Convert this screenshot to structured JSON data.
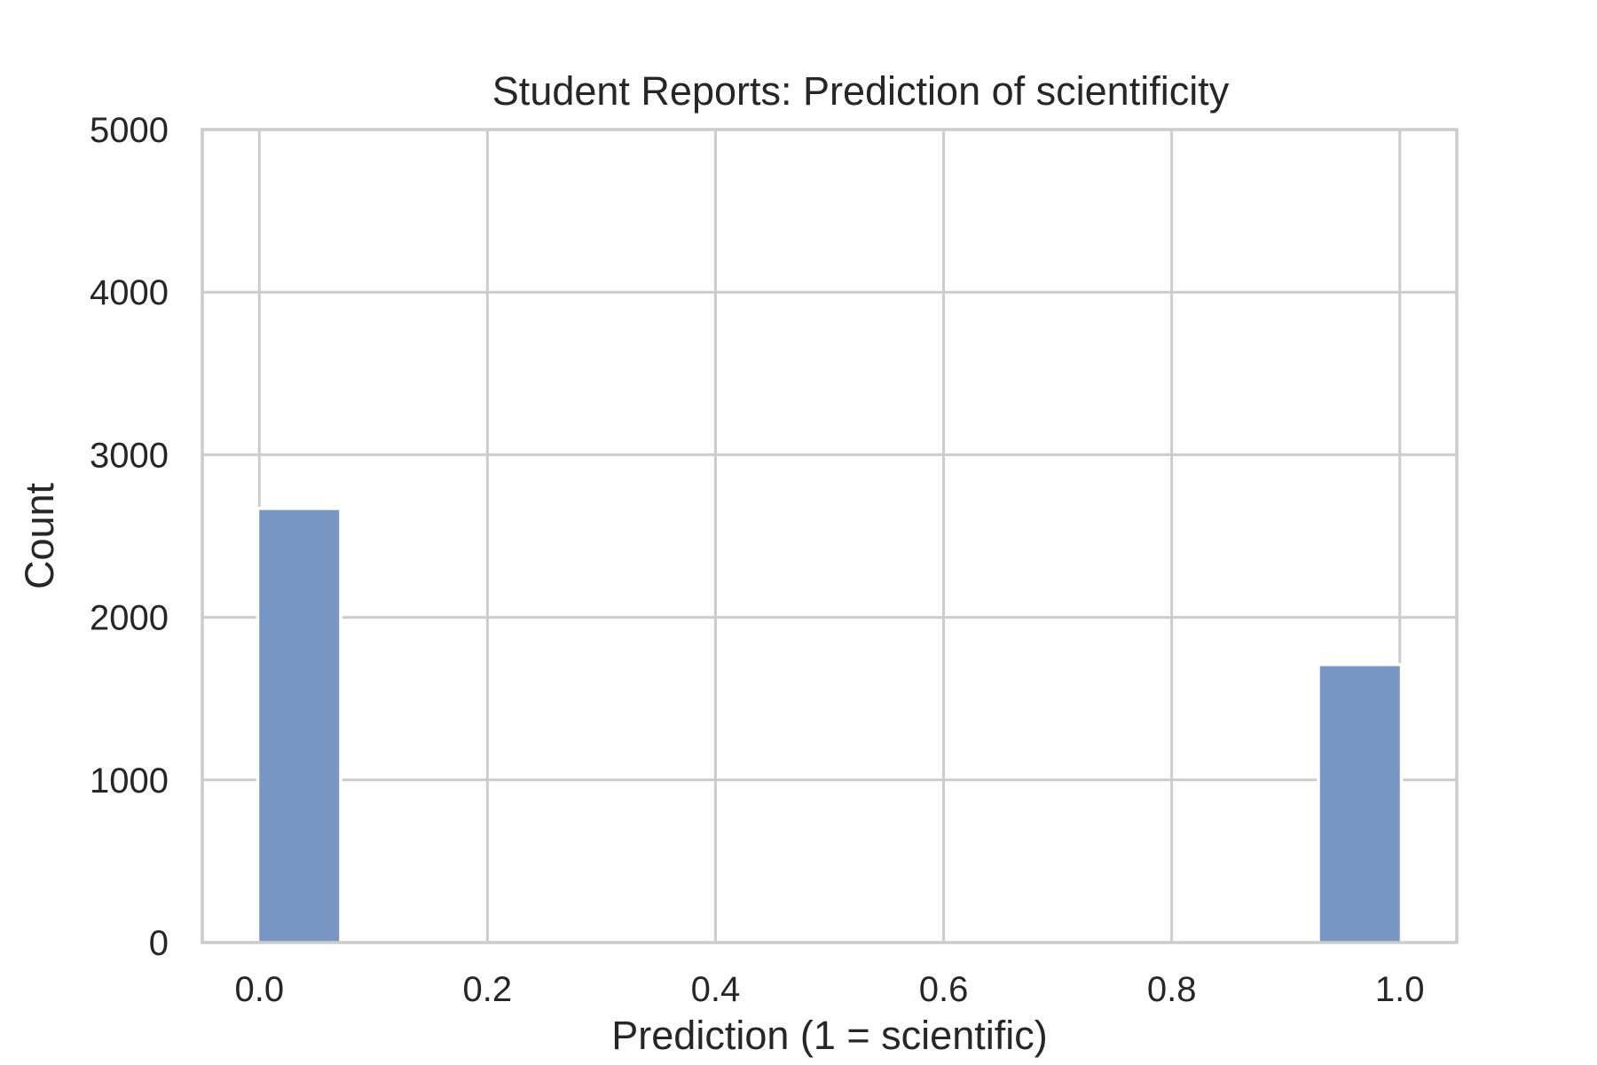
{
  "chart_data": {
    "type": "bar",
    "title": "Student Reports: Prediction of scientificity",
    "xlabel": "Prediction (1 = scientific)",
    "ylabel": "Count",
    "x_ticks": [
      "0.0",
      "0.2",
      "0.4",
      "0.6",
      "0.8",
      "1.0"
    ],
    "x_tick_values": [
      0.0,
      0.2,
      0.4,
      0.6,
      0.8,
      1.0
    ],
    "y_ticks": [
      "0",
      "1000",
      "2000",
      "3000",
      "4000",
      "5000"
    ],
    "y_tick_values": [
      0,
      1000,
      2000,
      3000,
      4000,
      5000
    ],
    "xlim": [
      -0.05,
      1.05
    ],
    "ylim": [
      0,
      5000
    ],
    "bars": [
      {
        "x_start": 0.0,
        "x_end": 0.07,
        "value": 2660
      },
      {
        "x_start": 0.93,
        "x_end": 1.0,
        "value": 1700
      }
    ],
    "grid": true,
    "bar_color": "#4c72b0",
    "bar_opacity": 0.75
  }
}
